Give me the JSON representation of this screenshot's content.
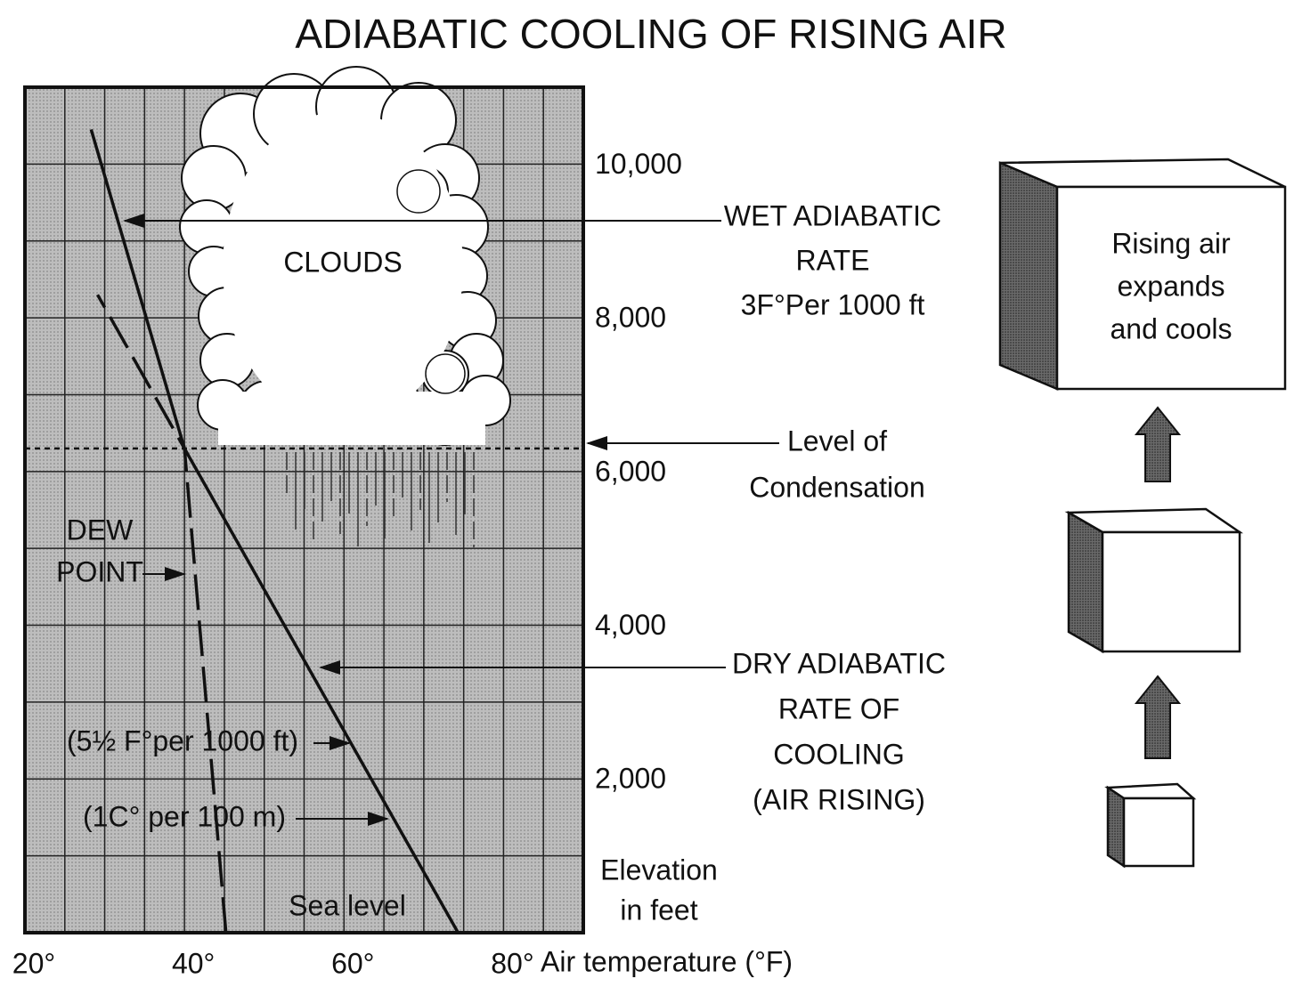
{
  "chart_data": {
    "type": "line",
    "title": "ADIABATIC COOLING OF RISING AIR",
    "x_label": "Air temperature (°F)",
    "y_label": [
      "Elevation",
      "in feet"
    ],
    "xlim": [
      20,
      90
    ],
    "ylim": [
      0,
      11000
    ],
    "xticks": [
      {
        "value": 20,
        "label": "20°"
      },
      {
        "value": 40,
        "label": "40°"
      },
      {
        "value": 60,
        "label": "60°"
      },
      {
        "value": 80,
        "label": "80°"
      }
    ],
    "yticks": [
      {
        "value": 2000,
        "label": "2,000"
      },
      {
        "value": 4000,
        "label": "4,000"
      },
      {
        "value": 6000,
        "label": "6,000"
      },
      {
        "value": 8000,
        "label": "8,000"
      },
      {
        "value": 10000,
        "label": "10,000"
      }
    ],
    "grid": true,
    "xgrid": [
      20,
      25,
      30,
      35,
      40,
      45,
      50,
      55,
      60,
      65,
      70,
      75,
      80,
      85,
      90
    ],
    "ygrid": [
      0,
      1000,
      2000,
      3000,
      4000,
      5000,
      6000,
      7000,
      8000,
      9000,
      10000,
      11000
    ],
    "condensation_level": 6300,
    "series": [
      {
        "color": "#111111",
        "style": "solid",
        "x": [
          74.3,
          40
        ],
        "values": [
          0,
          6300
        ]
      },
      {
        "color": "#111111",
        "style": "solid",
        "x": [
          40,
          28.3
        ],
        "values": [
          6300,
          10450
        ]
      },
      {
        "color": "#111111",
        "style": "dashed",
        "x": [
          45.2,
          40,
          29.1
        ],
        "values": [
          0,
          6300,
          8300
        ]
      }
    ],
    "annotations": [
      {
        "text": [
          "CLOUDS"
        ]
      },
      {
        "text": [
          "WET ADIABATIC",
          "RATE",
          "3F°Per 1000 ft"
        ]
      },
      {
        "text": [
          "Level of",
          "Condensation"
        ]
      },
      {
        "text": [
          "DEW",
          "POINT"
        ]
      },
      {
        "text": [
          "(5½ F°per 1000 ft)"
        ]
      },
      {
        "text": [
          "(1C° per 100 m)"
        ]
      },
      {
        "text": [
          "DRY ADIABATIC",
          "RATE  OF",
          "COOLING",
          "(AIR RISING)"
        ]
      },
      {
        "text": [
          "Sea level"
        ]
      }
    ]
  },
  "side_panel": {
    "text": [
      "Rising air",
      "expands",
      "and cools"
    ]
  }
}
